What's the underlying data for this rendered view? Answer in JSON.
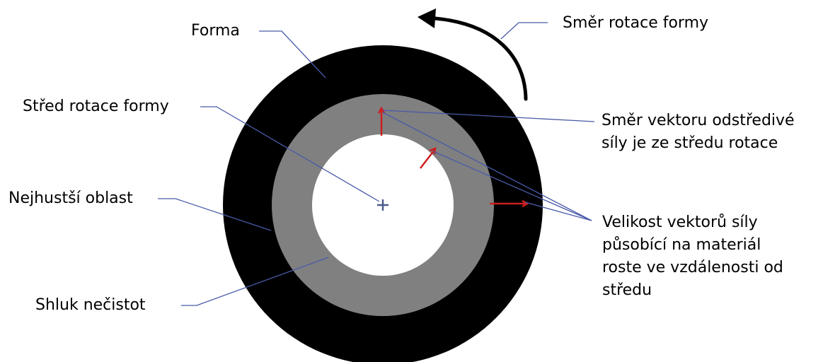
{
  "labels": {
    "mold": "Forma",
    "rotation_direction": "Směr rotace formy",
    "rotation_center": "Střed rotace formy",
    "centrifugal_direction_line1": "Směr vektoru odstředivé",
    "centrifugal_direction_line2": "síly je ze středu rotace",
    "densest_area": "Nejhustší oblast",
    "force_magnitude_line1": "Velikost vektorů síly",
    "force_magnitude_line2": "působící na materiál",
    "force_magnitude_line3": "roste ve vzdálenosti od",
    "force_magnitude_line4": "středu",
    "impurity_cluster": "Shluk nečistot"
  },
  "colors": {
    "mold": "#000000",
    "material_layer": "#808080",
    "inner_void": "#ffffff",
    "leader_lines": "#4a5aa8",
    "force_vectors": "#cc1f1f",
    "rotation_arrow": "#000000"
  },
  "icons": {
    "center_mark": "plus-icon",
    "rotation_arrow": "curved-arrow-icon"
  }
}
